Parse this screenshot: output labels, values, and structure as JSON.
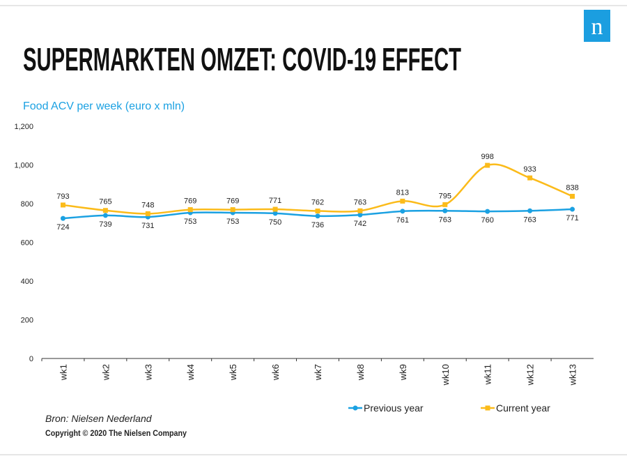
{
  "slide": {
    "logo": "n",
    "source": "Bron: Nielsen Nederland",
    "copyright": "Copyright © 2020 The Nielsen Company"
  },
  "chart_data": {
    "type": "line",
    "title": "SUPERMARKTEN OMZET: COVID-19 EFFECT",
    "subtitle": "Food ACV per week (euro x mln)",
    "categories": [
      "wk1",
      "wk2",
      "wk3",
      "wk4",
      "wk5",
      "wk6",
      "wk7",
      "wk8",
      "wk9",
      "wk10",
      "wk11",
      "wk12",
      "wk13"
    ],
    "series": [
      {
        "name": "Previous year",
        "color": "#1ba1e2",
        "marker": "circle",
        "values": [
          724,
          739,
          731,
          753,
          753,
          750,
          736,
          742,
          761,
          763,
          760,
          763,
          771
        ]
      },
      {
        "name": "Current year",
        "color": "#fbbb1a",
        "marker": "square",
        "values": [
          793,
          765,
          748,
          769,
          769,
          771,
          762,
          763,
          813,
          795,
          998,
          933,
          838
        ]
      }
    ],
    "ylim": [
      0,
      1200
    ],
    "yticks": [
      0,
      200,
      400,
      600,
      800,
      {
        "value": 1000,
        "label": "1,000"
      },
      {
        "value": 1200,
        "label": "1,200"
      }
    ],
    "grid": false,
    "smooth": true,
    "legend": "bottom"
  }
}
